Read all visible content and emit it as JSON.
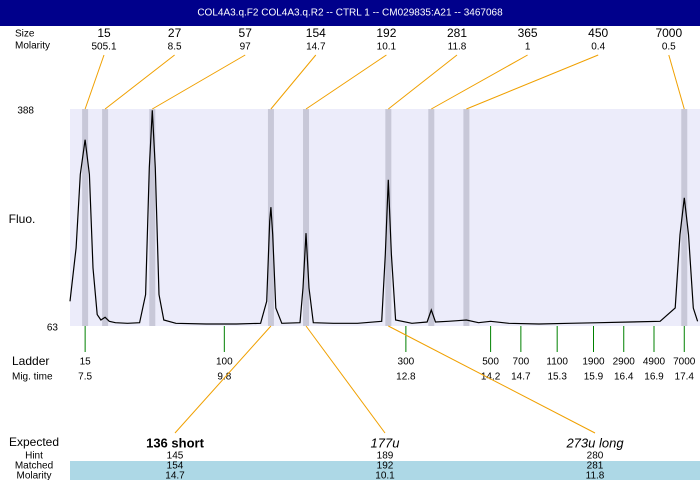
{
  "chart_data": {
    "type": "line",
    "title": "COL4A3.q.F2  COL4A3.q.R2 -- CTRL 1 -- CM029835:A21 -- 3467068",
    "ylabel": "Fluo.",
    "color": "#000000",
    "ylim": [
      63,
      388
    ],
    "yticks": [
      63,
      388
    ],
    "xlim": [
      7.25,
      17.66
    ],
    "x": [
      7.25,
      7.35,
      7.42,
      7.5,
      7.57,
      7.63,
      7.7,
      7.76,
      7.83,
      7.9,
      8.0,
      8.2,
      8.4,
      8.5,
      8.56,
      8.61,
      8.66,
      8.72,
      8.8,
      9.0,
      9.5,
      10.0,
      10.4,
      10.5,
      10.55,
      10.57,
      10.6,
      10.65,
      10.75,
      11.05,
      11.1,
      11.15,
      11.2,
      11.27,
      11.6,
      12.0,
      12.4,
      12.46,
      12.51,
      12.56,
      12.63,
      12.9,
      13.15,
      13.22,
      13.29,
      13.5,
      13.65,
      13.8,
      14.0,
      14.2,
      14.5,
      15.0,
      15.5,
      16.0,
      16.5,
      17.0,
      17.25,
      17.33,
      17.4,
      17.47,
      17.55,
      17.62
    ],
    "values": [
      100,
      180,
      290,
      342,
      290,
      150,
      80,
      72,
      76,
      70,
      68,
      67,
      68,
      110,
      300,
      386,
      300,
      110,
      72,
      67,
      66,
      66,
      67,
      100,
      220,
      241,
      200,
      90,
      67,
      68,
      120,
      202,
      120,
      68,
      67,
      67,
      70,
      170,
      282,
      170,
      72,
      67,
      69,
      87,
      69,
      70,
      71,
      72,
      68,
      70,
      67,
      66,
      67,
      68,
      69,
      70,
      90,
      200,
      255,
      200,
      90,
      70
    ],
    "peaks": {
      "labels": [
        "Size",
        "Molarity"
      ],
      "times": [
        7.5,
        7.83,
        8.61,
        10.57,
        11.15,
        12.51,
        13.22,
        13.8,
        17.4
      ],
      "sizes": [
        15,
        27,
        57,
        154,
        192,
        281,
        365,
        450,
        7000
      ],
      "molarity": [
        505.1,
        8.5,
        97,
        14.7,
        10.1,
        11.8,
        1,
        0.4,
        0.5
      ]
    },
    "ladder": {
      "labels": [
        "Ladder",
        "Mig. time"
      ],
      "sizes": [
        15,
        100,
        300,
        500,
        700,
        1100,
        1900,
        2900,
        4900,
        7000
      ],
      "times": [
        7.5,
        9.8,
        12.8,
        14.2,
        14.7,
        15.3,
        15.9,
        16.4,
        16.9,
        17.4
      ]
    },
    "expected": {
      "labels": [
        "Expected",
        "Hint",
        "Matched",
        "Molarity"
      ],
      "names": [
        "136 short",
        "177u",
        "273u long"
      ],
      "hints": [
        145,
        189,
        280
      ],
      "matched": [
        154,
        192,
        281
      ],
      "molarity": [
        14.7,
        10.1,
        11.8
      ]
    }
  }
}
